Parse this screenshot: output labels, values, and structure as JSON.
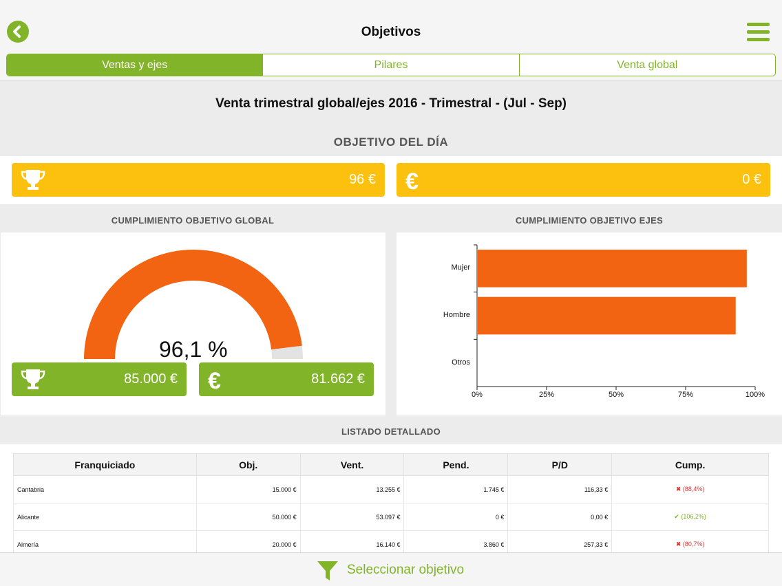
{
  "header": {
    "title": "Objetivos"
  },
  "tabs": [
    {
      "label": "Ventas y ejes",
      "active": true
    },
    {
      "label": "Pilares",
      "active": false
    },
    {
      "label": "Venta global",
      "active": false
    }
  ],
  "report_title": "Venta trimestral global/ejes 2016 - Trimestral - (Jul - Sep)",
  "objetivo_dia": {
    "heading": "OBJETIVO DEL DÍA",
    "trophy_value": "96 €",
    "euro_value": "0 €"
  },
  "global": {
    "heading": "CUMPLIMIENTO OBJETIVO GLOBAL",
    "percent_text": "96,1 %",
    "percent": 96.1,
    "objective": "85.000 €",
    "sales": "81.662 €"
  },
  "ejes": {
    "heading": "CUMPLIMIENTO OBJETIVO EJES"
  },
  "chart_data": {
    "type": "bar",
    "orientation": "horizontal",
    "categories": [
      "Mujer",
      "Hombre",
      "Otros"
    ],
    "values": [
      97,
      93,
      0
    ],
    "xlim": [
      0,
      100
    ],
    "ticks": [
      "0%",
      "25%",
      "50%",
      "75%",
      "100%"
    ],
    "color": "#f26411"
  },
  "listado": {
    "heading": "LISTADO DETALLADO",
    "columns": [
      "Franquiciado",
      "Obj.",
      "Vent.",
      "Pend.",
      "P/D",
      "Cump."
    ],
    "rows": [
      {
        "name": "Cantabria",
        "obj": "15.000 €",
        "vent": "13.255 €",
        "pend": "1.745 €",
        "pd": "116,33 €",
        "cump": "(88,4%)",
        "ok": false
      },
      {
        "name": "Alicante",
        "obj": "50.000 €",
        "vent": "53.097 €",
        "pend": "0 €",
        "pd": "0,00 €",
        "cump": "(106,2%)",
        "ok": true
      },
      {
        "name": "Almería",
        "obj": "20.000 €",
        "vent": "16.140 €",
        "pend": "3.860 €",
        "pd": "257,33 €",
        "cump": "(80,7%)",
        "ok": false
      }
    ]
  },
  "footer": {
    "label": "Seleccionar objetivo"
  },
  "colors": {
    "accent": "#82b42a",
    "yellow": "#fcc10e",
    "orange": "#f26411",
    "bad": "#d9302c"
  }
}
